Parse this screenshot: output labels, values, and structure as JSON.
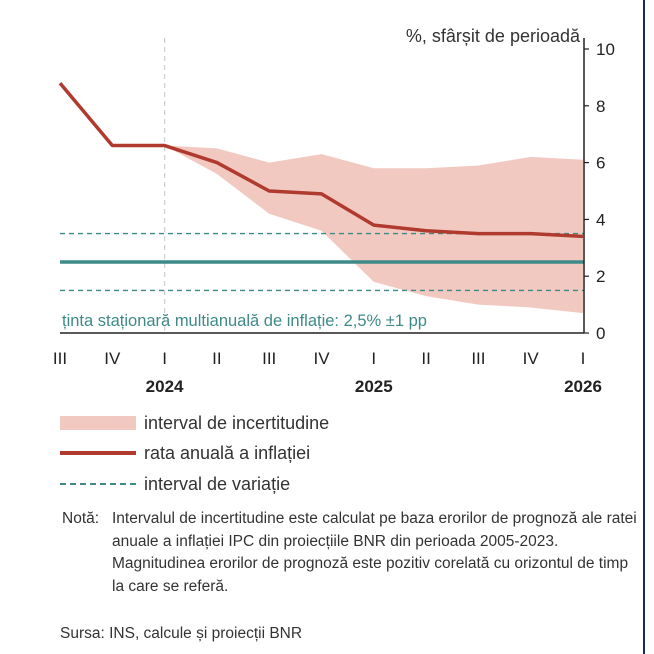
{
  "chart_data": {
    "type": "line",
    "unit_label": "%, sfârșit de perioadă",
    "ylim": [
      0,
      10
    ],
    "yticks": [
      "0",
      "2",
      "4",
      "6",
      "8",
      "10"
    ],
    "x_quarters": [
      "III",
      "IV",
      "I",
      "II",
      "III",
      "IV",
      "I",
      "II",
      "III",
      "IV",
      "I"
    ],
    "x_years": [
      {
        "label": "2024",
        "quarter_index": 2
      },
      {
        "label": "2025",
        "quarter_index": 6
      },
      {
        "label": "2026",
        "quarter_index": 10
      }
    ],
    "forecast_start_index": 2,
    "series": [
      {
        "name": "rata anuală a inflației",
        "color": "#b03a2e",
        "values": [
          8.8,
          6.6,
          6.6,
          6.0,
          5.0,
          4.9,
          3.8,
          3.6,
          3.5,
          3.5,
          3.4
        ]
      }
    ],
    "uncertainty_band": {
      "name": "interval de incertitudine",
      "color": "#f2c9c0",
      "start_index": 2,
      "upper": [
        6.6,
        6.5,
        6.0,
        6.3,
        5.8,
        5.8,
        5.9,
        6.2,
        6.1
      ],
      "lower": [
        6.6,
        5.6,
        4.2,
        3.6,
        1.8,
        1.3,
        1.0,
        0.9,
        0.7
      ]
    },
    "target": {
      "value": 2.5,
      "color": "#3e8a88"
    },
    "variation_interval": {
      "name": "interval de variație",
      "upper": 3.5,
      "lower": 1.5,
      "color": "#3e8a88"
    },
    "annotation": "ținta staționară multianuală de inflație: 2,5% ±1 pp"
  },
  "legend": {
    "band": "interval de incertitudine",
    "line": "rata anuală a inflației",
    "dashed": "interval de variație"
  },
  "note": {
    "label": "Notă:",
    "text": "Intervalul de incertitudine este calculat pe baza erorilor de prognoză ale ratei anuale a inflației IPC din proiecțiile BNR din perioada 2005-2023. Magnitudinea erorilor de prognoză este pozitiv corelată cu orizontul de timp la care se referă."
  },
  "source": "Sursa: INS, calcule și proiecții BNR"
}
